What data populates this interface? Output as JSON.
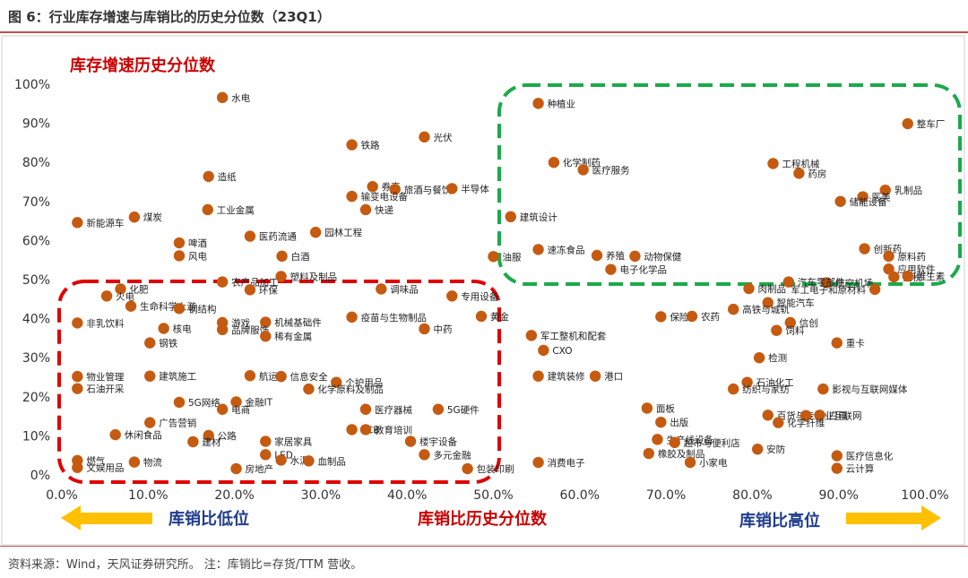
{
  "figure": {
    "title": "图 6：行业库存增速与库销比的历史分位数（23Q1）",
    "source": "资料来源：Wind，天风证券研究所。 注：库销比=存货/TTM 营收。"
  },
  "colors": {
    "marker": "#c55a11",
    "rule": "#c0504d",
    "red": "#cc0000",
    "green": "#1aaa4a",
    "blue": "#1f3b8c",
    "arrow": "#ffc000"
  },
  "chart_data": {
    "type": "scatter",
    "xlim": [
      0,
      100
    ],
    "ylim": [
      0,
      100
    ],
    "x_ticks": [
      "0.0%",
      "10.0%",
      "20.0%",
      "30.0%",
      "40.0%",
      "50.0%",
      "60.0%",
      "70.0%",
      "80.0%",
      "90.0%",
      "100.0%"
    ],
    "y_ticks": [
      "0%",
      "10%",
      "20%",
      "30%",
      "40%",
      "50%",
      "60%",
      "70%",
      "80%",
      "90%",
      "100%"
    ],
    "annotations": {
      "y_title": "库存增速历史分位数",
      "x_title": "库销比历史分位数",
      "left_note": "库销比低位",
      "right_note": "库销比高位"
    },
    "points": [
      {
        "label": "水电",
        "x": 18.6,
        "y": 96.6
      },
      {
        "label": "铁路",
        "x": 33.6,
        "y": 84.5
      },
      {
        "label": "光伏",
        "x": 42.0,
        "y": 86.5
      },
      {
        "label": "造纸",
        "x": 17.0,
        "y": 76.4
      },
      {
        "label": "券商",
        "x": 36.0,
        "y": 73.8
      },
      {
        "label": "旅酒与餐饮",
        "x": 38.6,
        "y": 73.1
      },
      {
        "label": "输变电设备",
        "x": 33.6,
        "y": 71.3
      },
      {
        "label": "半导体",
        "x": 45.2,
        "y": 73.3
      },
      {
        "label": "快递",
        "x": 35.2,
        "y": 67.9
      },
      {
        "label": "工业金属",
        "x": 16.9,
        "y": 67.9
      },
      {
        "label": "新能源车",
        "x": 1.8,
        "y": 64.6
      },
      {
        "label": "煤炭",
        "x": 8.4,
        "y": 66.0
      },
      {
        "label": "医药流通",
        "x": 21.8,
        "y": 61.1
      },
      {
        "label": "园林工程",
        "x": 29.4,
        "y": 62.1
      },
      {
        "label": "啤酒",
        "x": 13.6,
        "y": 59.4
      },
      {
        "label": "风电",
        "x": 13.6,
        "y": 56.1
      },
      {
        "label": "白酒",
        "x": 25.5,
        "y": 56.0
      },
      {
        "label": "农产品加工",
        "x": 18.6,
        "y": 49.4
      },
      {
        "label": "塑料及制品",
        "x": 25.4,
        "y": 50.8
      },
      {
        "label": "化肥",
        "x": 6.8,
        "y": 47.6
      },
      {
        "label": "火电",
        "x": 5.2,
        "y": 45.8
      },
      {
        "label": "生命科学上游",
        "x": 8.0,
        "y": 43.2
      },
      {
        "label": "环保",
        "x": 21.8,
        "y": 47.4
      },
      {
        "label": "调味品",
        "x": 37.0,
        "y": 47.6
      },
      {
        "label": "专用设备",
        "x": 45.2,
        "y": 45.8
      },
      {
        "label": "钢结构",
        "x": 13.6,
        "y": 42.6
      },
      {
        "label": "非乳饮料",
        "x": 1.8,
        "y": 38.9
      },
      {
        "label": "核电",
        "x": 11.8,
        "y": 37.5
      },
      {
        "label": "游戏",
        "x": 18.6,
        "y": 39.0
      },
      {
        "label": "机械基础件",
        "x": 23.6,
        "y": 39.1
      },
      {
        "label": "疫苗与生物制品",
        "x": 33.6,
        "y": 40.4
      },
      {
        "label": "黄金",
        "x": 48.6,
        "y": 40.6
      },
      {
        "label": "钢铁",
        "x": 10.2,
        "y": 33.8
      },
      {
        "label": "品牌服饰",
        "x": 18.6,
        "y": 37.2
      },
      {
        "label": "稀有金属",
        "x": 23.6,
        "y": 35.5
      },
      {
        "label": "中药",
        "x": 42.0,
        "y": 37.4
      },
      {
        "label": "物业管理",
        "x": 1.8,
        "y": 25.2
      },
      {
        "label": "建筑施工",
        "x": 10.2,
        "y": 25.3
      },
      {
        "label": "航运",
        "x": 21.8,
        "y": 25.4
      },
      {
        "label": "信息安全",
        "x": 25.4,
        "y": 25.2
      },
      {
        "label": "个护用品",
        "x": 31.8,
        "y": 23.7
      },
      {
        "label": "石油开采",
        "x": 1.8,
        "y": 22.1
      },
      {
        "label": "5G网络",
        "x": 13.6,
        "y": 18.6
      },
      {
        "label": "金融IT",
        "x": 20.2,
        "y": 18.7
      },
      {
        "label": "化学原料及制品",
        "x": 28.6,
        "y": 22.0
      },
      {
        "label": "电商",
        "x": 18.6,
        "y": 16.8
      },
      {
        "label": "医疗器械",
        "x": 35.2,
        "y": 16.8
      },
      {
        "label": "5G硬件",
        "x": 43.6,
        "y": 16.8
      },
      {
        "label": "广告营销",
        "x": 10.2,
        "y": 13.4
      },
      {
        "label": "休闲食品",
        "x": 6.2,
        "y": 10.3
      },
      {
        "label": "公路",
        "x": 17.0,
        "y": 10.1
      },
      {
        "label": "建材",
        "x": 15.2,
        "y": 8.5
      },
      {
        "label": "PCB",
        "x": 33.6,
        "y": 11.6
      },
      {
        "label": "教育培训",
        "x": 35.2,
        "y": 11.6
      },
      {
        "label": "家居家具",
        "x": 23.6,
        "y": 8.6
      },
      {
        "label": "楼宇设备",
        "x": 40.4,
        "y": 8.6
      },
      {
        "label": "燃气",
        "x": 1.8,
        "y": 3.7
      },
      {
        "label": "文娱用品",
        "x": 1.8,
        "y": 1.9
      },
      {
        "label": "物流",
        "x": 8.4,
        "y": 3.3
      },
      {
        "label": "房地产",
        "x": 20.2,
        "y": 1.6
      },
      {
        "label": "LED",
        "x": 23.6,
        "y": 5.2
      },
      {
        "label": "水泥",
        "x": 25.4,
        "y": 3.8
      },
      {
        "label": "血制品",
        "x": 28.6,
        "y": 3.6
      },
      {
        "label": "多元金融",
        "x": 42.0,
        "y": 5.2
      },
      {
        "label": "包装印刷",
        "x": 47.0,
        "y": 1.6
      },
      {
        "label": "种植业",
        "x": 55.2,
        "y": 95.1
      },
      {
        "label": "化学制药",
        "x": 57.0,
        "y": 80.0
      },
      {
        "label": "医疗服务",
        "x": 60.4,
        "y": 78.1
      },
      {
        "label": "建筑设计",
        "x": 52.0,
        "y": 66.1
      },
      {
        "label": "油服",
        "x": 50.0,
        "y": 55.9
      },
      {
        "label": "速冻食品",
        "x": 55.2,
        "y": 57.7
      },
      {
        "label": "养殖",
        "x": 62.0,
        "y": 56.2
      },
      {
        "label": "动物保健",
        "x": 66.4,
        "y": 56.0
      },
      {
        "label": "电子化学品",
        "x": 63.6,
        "y": 52.6
      },
      {
        "label": "工程机械",
        "x": 82.4,
        "y": 79.7
      },
      {
        "label": "药房",
        "x": 85.4,
        "y": 77.2
      },
      {
        "label": "整车厂",
        "x": 98.0,
        "y": 89.9
      },
      {
        "label": "乳制品",
        "x": 95.4,
        "y": 72.9
      },
      {
        "label": "医美",
        "x": 92.8,
        "y": 71.2
      },
      {
        "label": "储能设备",
        "x": 90.2,
        "y": 70.0
      },
      {
        "label": "创新药",
        "x": 93.0,
        "y": 57.9
      },
      {
        "label": "原料药",
        "x": 95.8,
        "y": 56.0
      },
      {
        "label": "应用软件",
        "x": 95.8,
        "y": 52.7
      },
      {
        "label": "航空机场",
        "x": 88.6,
        "y": 49.2
      },
      {
        "label": "免税",
        "x": 96.4,
        "y": 50.7
      },
      {
        "label": "维生素",
        "x": 98.0,
        "y": 50.9
      },
      {
        "label": "肉制品",
        "x": 79.6,
        "y": 47.7
      },
      {
        "label": "汽车零部件",
        "x": 84.2,
        "y": 49.4
      },
      {
        "label": "智能汽车",
        "x": 81.8,
        "y": 44.1
      },
      {
        "label": "军工电子和原材料",
        "x": 94.2,
        "y": 47.5
      },
      {
        "label": "保险",
        "x": 69.4,
        "y": 40.5
      },
      {
        "label": "农药",
        "x": 73.0,
        "y": 40.6
      },
      {
        "label": "信创",
        "x": 84.4,
        "y": 39.0
      },
      {
        "label": "高铁与城轨",
        "x": 77.8,
        "y": 42.4
      },
      {
        "label": "饲料",
        "x": 82.8,
        "y": 37.0
      },
      {
        "label": "军工整机和配套",
        "x": 54.4,
        "y": 35.7
      },
      {
        "label": "重卡",
        "x": 89.8,
        "y": 33.8
      },
      {
        "label": "CXO",
        "x": 55.8,
        "y": 31.9
      },
      {
        "label": "检测",
        "x": 80.8,
        "y": 30.0
      },
      {
        "label": "建筑装修",
        "x": 55.2,
        "y": 25.3
      },
      {
        "label": "港口",
        "x": 61.8,
        "y": 25.3
      },
      {
        "label": "石油化工",
        "x": 79.4,
        "y": 23.7
      },
      {
        "label": "纺织与家纺",
        "x": 77.8,
        "y": 22.0
      },
      {
        "label": "影视与互联网媒体",
        "x": 88.2,
        "y": 22.0
      },
      {
        "label": "百货与专营",
        "x": 81.8,
        "y": 15.3
      },
      {
        "label": "工业互联网",
        "x": 86.2,
        "y": 15.2
      },
      {
        "label": "白电",
        "x": 87.8,
        "y": 15.3
      },
      {
        "label": "化学纤维",
        "x": 83.0,
        "y": 13.4
      },
      {
        "label": "面板",
        "x": 67.8,
        "y": 17.1
      },
      {
        "label": "出版",
        "x": 69.4,
        "y": 13.5
      },
      {
        "label": "生产线设备",
        "x": 69.0,
        "y": 9.1
      },
      {
        "label": "超市与便利店",
        "x": 71.0,
        "y": 8.3
      },
      {
        "label": "安防",
        "x": 80.6,
        "y": 6.6
      },
      {
        "label": "橡胶及制品",
        "x": 68.0,
        "y": 5.5
      },
      {
        "label": "小家电",
        "x": 72.8,
        "y": 3.2
      },
      {
        "label": "医疗信息化",
        "x": 89.8,
        "y": 4.9
      },
      {
        "label": "云计算",
        "x": 89.8,
        "y": 1.7
      },
      {
        "label": "消费电子",
        "x": 55.2,
        "y": 3.2
      }
    ]
  }
}
